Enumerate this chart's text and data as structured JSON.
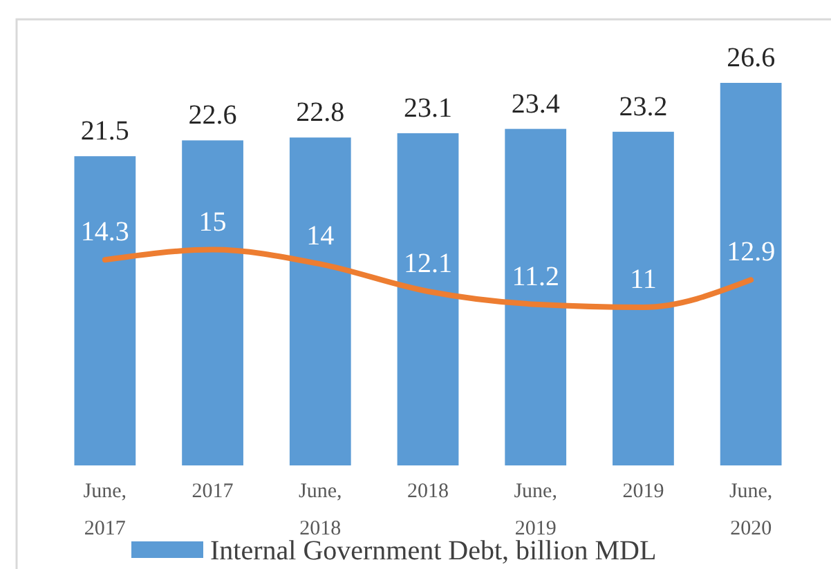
{
  "chart_data": {
    "type": "bar",
    "categories": [
      "June, 2017",
      "2017",
      "June, 2018",
      "2018",
      "June, 2019",
      "2019",
      "June, 2020"
    ],
    "series": [
      {
        "name": "Internal Government Debt, billion MDL",
        "color": "#5b9bd5",
        "values": [
          21.5,
          22.6,
          22.8,
          23.1,
          23.4,
          23.2,
          26.6
        ]
      },
      {
        "type": "line",
        "color": "#ed7d31",
        "values": [
          14.3,
          15,
          14,
          12.1,
          11.2,
          11,
          12.9
        ]
      }
    ],
    "data_labels": true,
    "legend": "bottom"
  }
}
